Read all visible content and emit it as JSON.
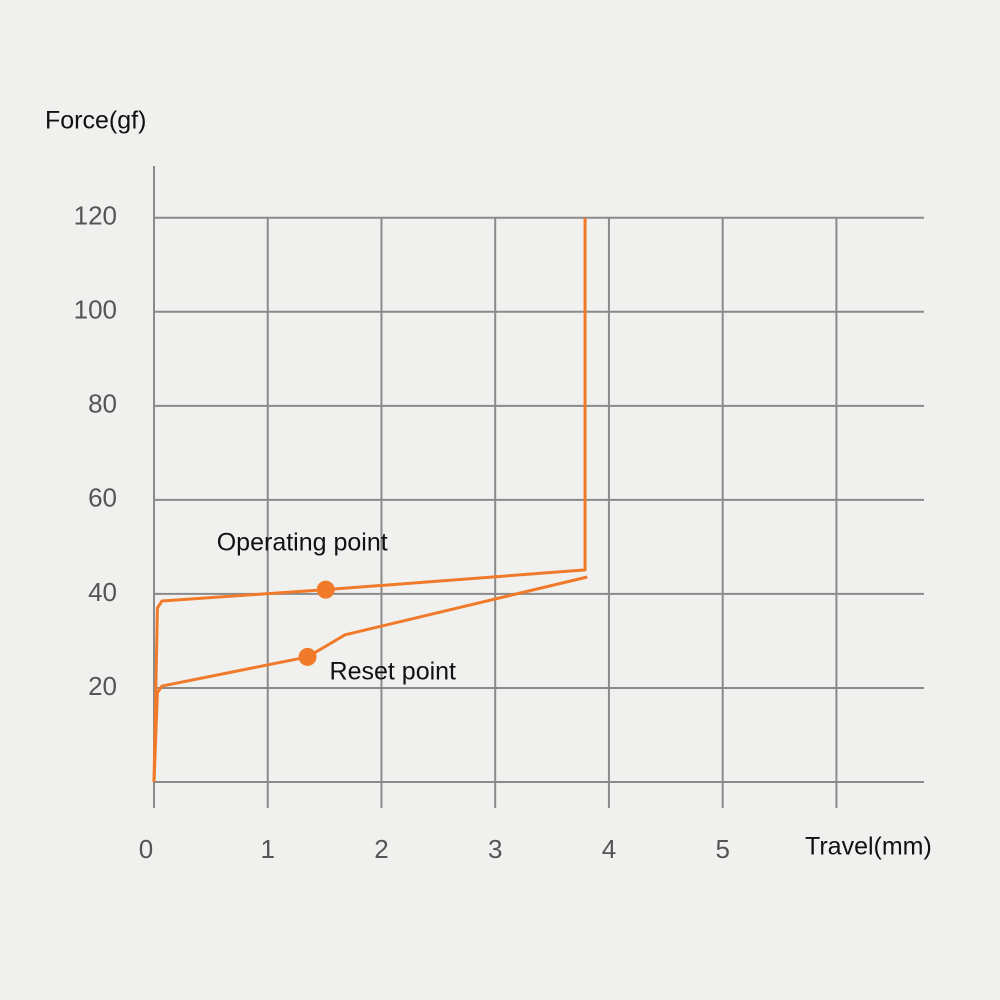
{
  "chart_data": {
    "type": "line",
    "x_label": "Travel(mm)",
    "y_label": "Force(gf)",
    "xlim": [
      0,
      6.77
    ],
    "ylim": [
      0,
      131
    ],
    "xticks": [
      0,
      1,
      2,
      3,
      4,
      5,
      {
        "value": 6,
        "label": null
      }
    ],
    "yticks": [
      {
        "value": 0,
        "label": null
      },
      20,
      40,
      60,
      80,
      100,
      120
    ],
    "grid": true,
    "series": [
      {
        "color": "#f07a2a",
        "x": [
          0,
          0.03,
          0.07,
          1.51,
          3.79,
          3.79
        ],
        "values": [
          0,
          37,
          38.5,
          40.9,
          45.1,
          120
        ]
      },
      {
        "color": "#f07a2a",
        "x": [
          3.81,
          1.68,
          1.35,
          0.07,
          0.03,
          0
        ],
        "values": [
          43.6,
          31.3,
          26.6,
          20.4,
          19,
          0
        ]
      }
    ],
    "points": [
      {
        "label": "Operating point",
        "x": 1.51,
        "y": 40.9,
        "color": "#f07a2a"
      },
      {
        "label": "Reset point",
        "x": 1.35,
        "y": 26.6,
        "color": "#f07a2a"
      }
    ]
  }
}
